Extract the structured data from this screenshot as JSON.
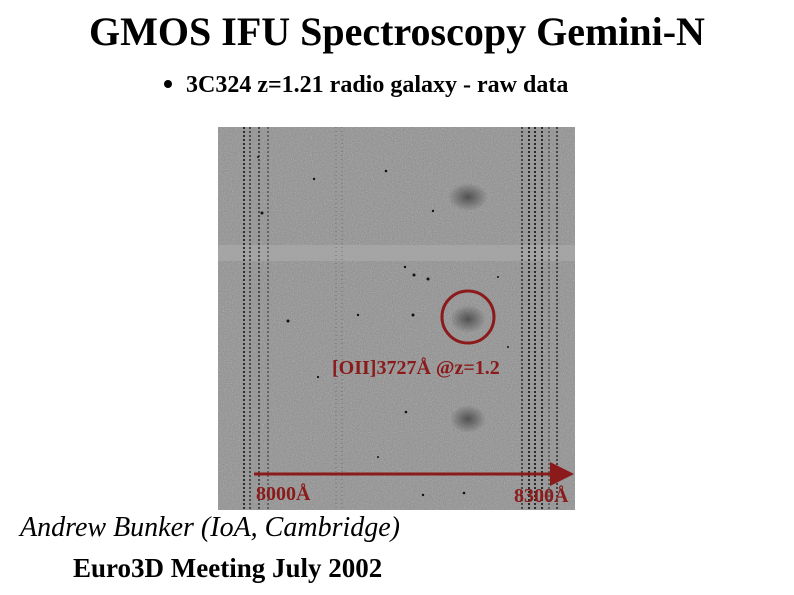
{
  "slide": {
    "title": "GMOS IFU Spectroscopy Gemini-N",
    "bullet": "3C324 z=1.21 radio galaxy - raw data",
    "image_annotations": {
      "line_label": "[OII]3727Å @z=1.2",
      "wavelength_start": "8000Å",
      "wavelength_end": "8300Å"
    },
    "author": "Andrew Bunker (IoA, Cambridge)",
    "meeting": "Euro3D Meeting July 2002"
  },
  "colors": {
    "annotation": "#8b1a1a",
    "background": "#ffffff",
    "image_gray": "#8d8d8d"
  }
}
